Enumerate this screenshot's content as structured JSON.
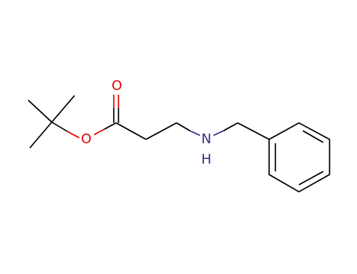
{
  "atoms": [
    {
      "label": "O"
    },
    {
      "label": "O"
    },
    {
      "label": "N"
    },
    {
      "label": "H"
    }
  ]
}
